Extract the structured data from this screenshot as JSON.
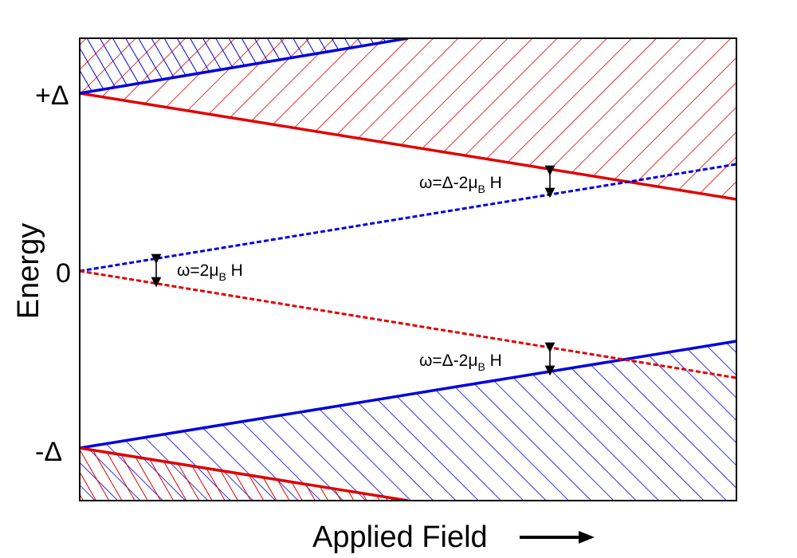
{
  "axes": {
    "xlabel": "Applied Field",
    "ylabel": "Energy",
    "y_ticks": [
      {
        "id": "plus-delta",
        "label": "+Δ"
      },
      {
        "id": "zero",
        "label": "0"
      },
      {
        "id": "minus-delta",
        "label": "-Δ"
      }
    ]
  },
  "annotations": {
    "upper_gap": {
      "omega": "ω=Δ-2μ",
      "sub": "B",
      "tail": " H"
    },
    "middle_gap": {
      "omega": "ω=2μ",
      "sub": "B",
      "tail": " H"
    },
    "lower_gap": {
      "omega": "ω=Δ-2μ",
      "sub": "B",
      "tail": " H"
    }
  },
  "colors": {
    "spin_up": "#e00000",
    "spin_down": "#0000e0",
    "axis": "#000000"
  }
}
